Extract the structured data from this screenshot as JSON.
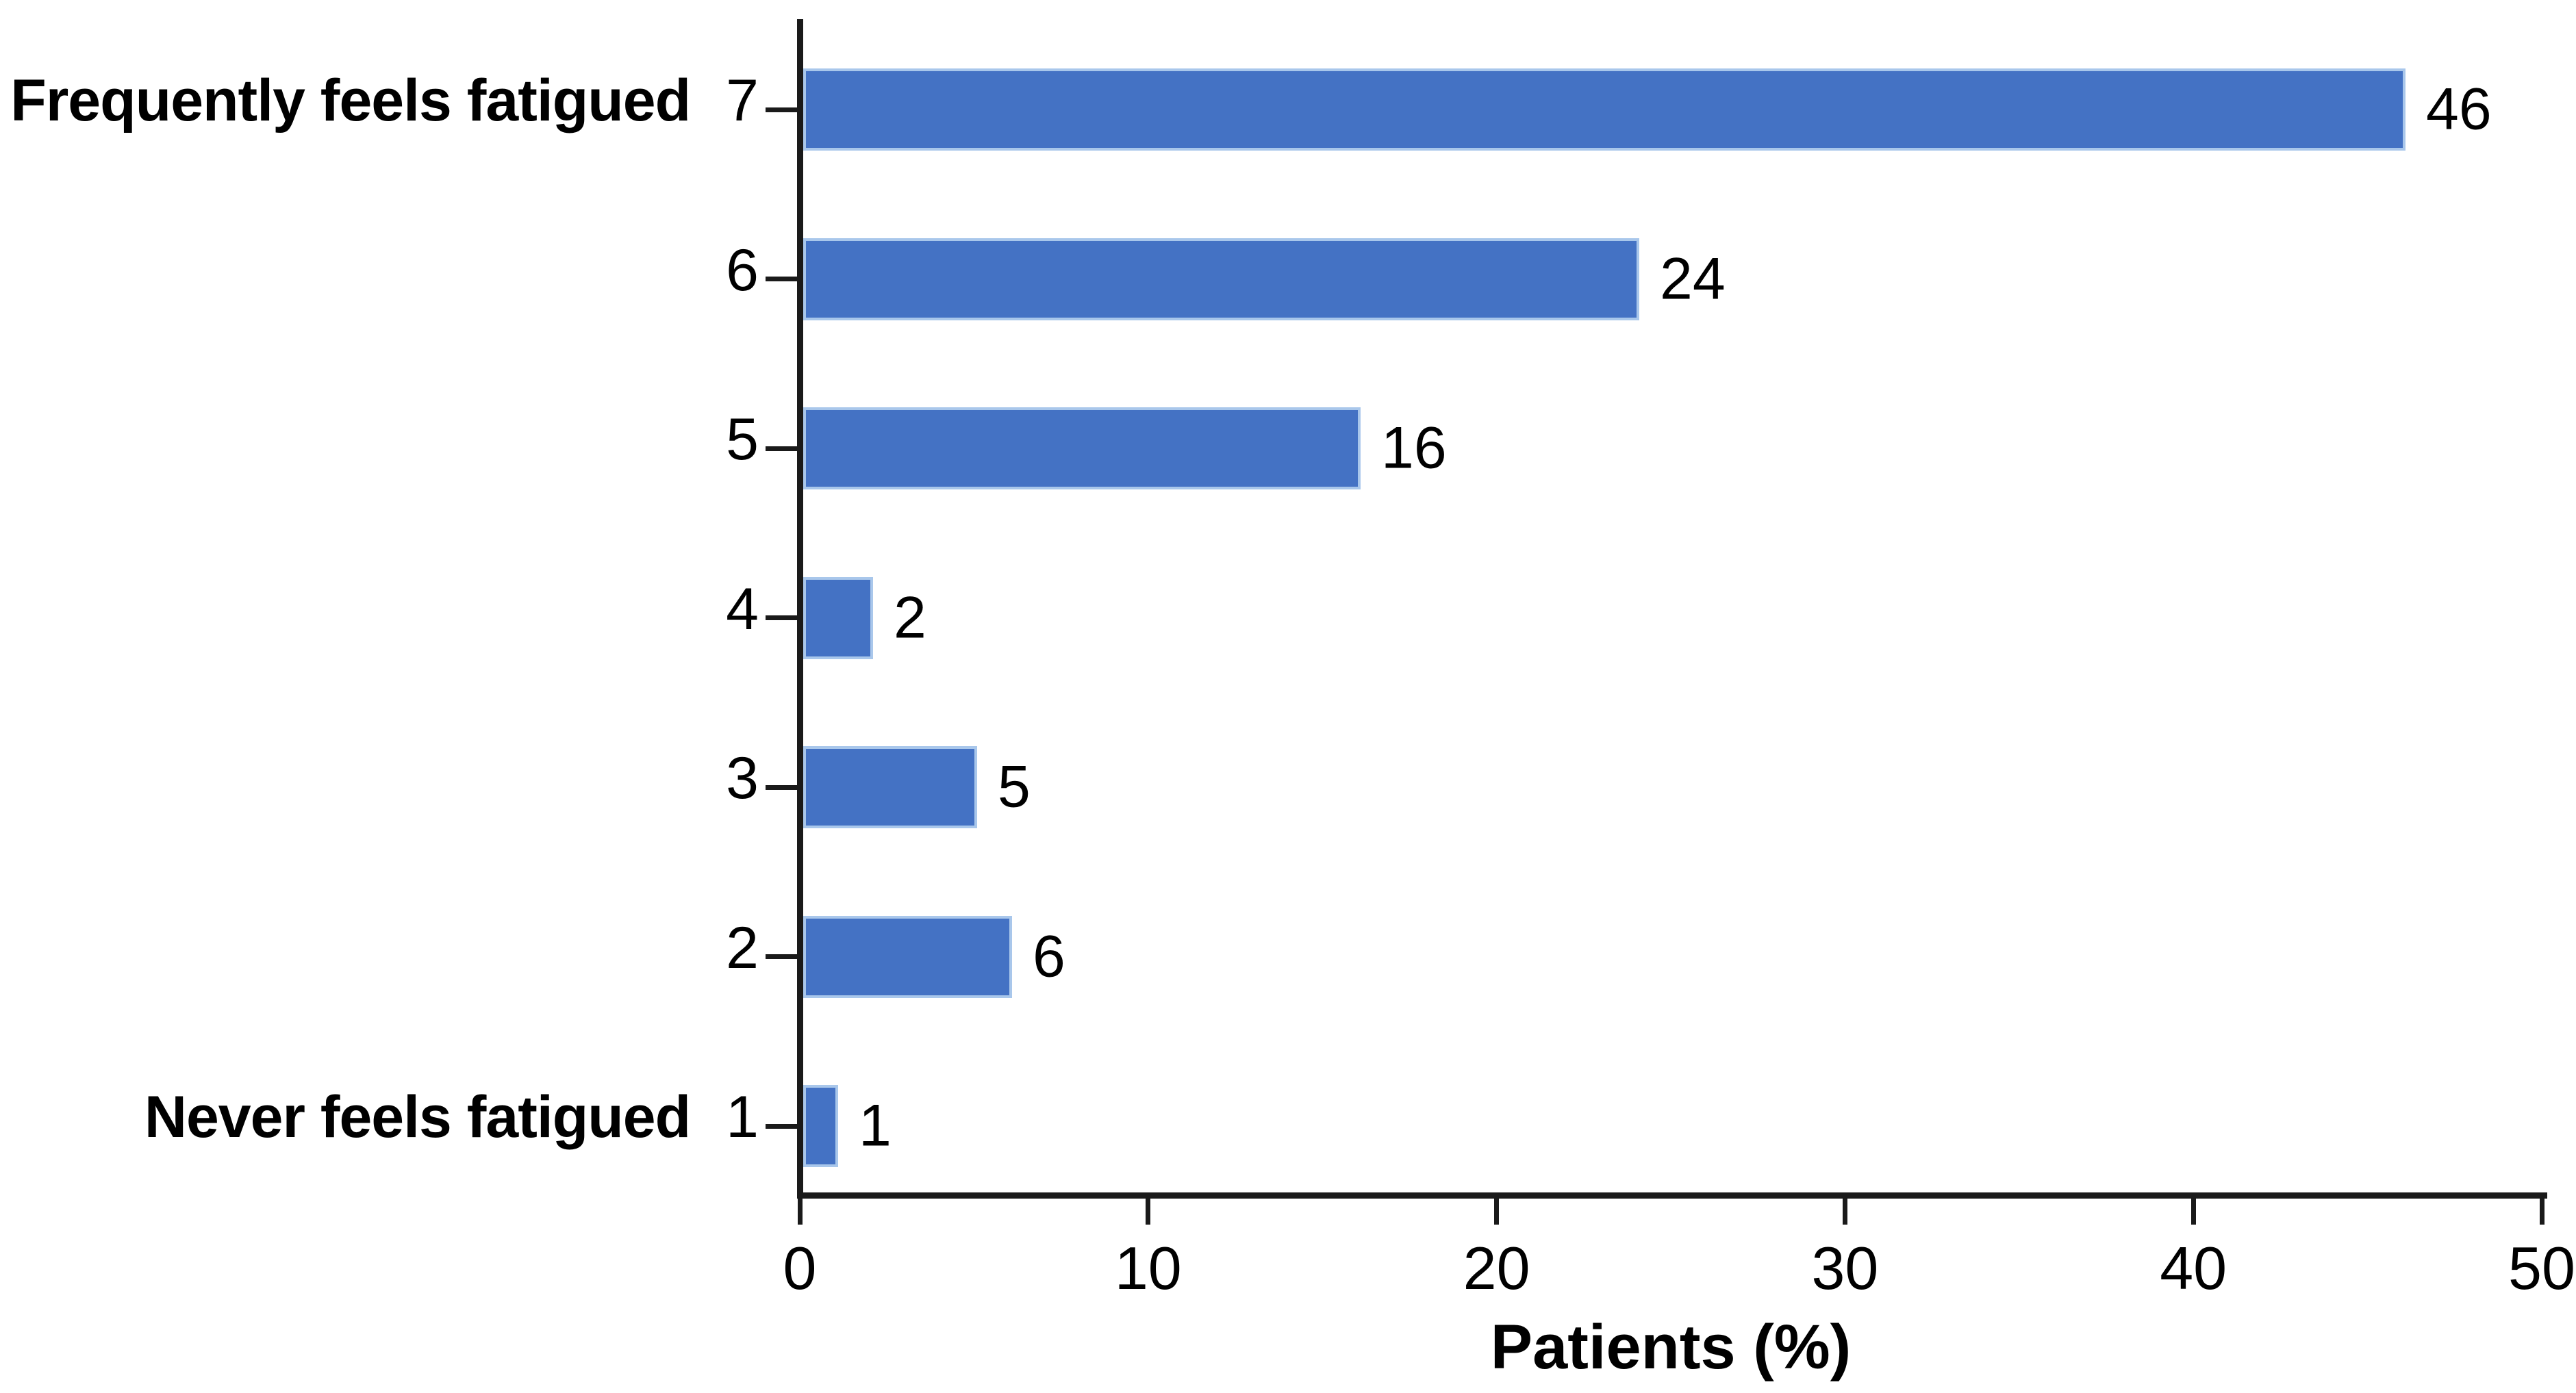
{
  "chart_data": {
    "type": "bar",
    "orientation": "horizontal",
    "title": "",
    "xlabel": "Patients (%)",
    "ylabel": "",
    "categories": [
      "7",
      "6",
      "5",
      "4",
      "3",
      "2",
      "1"
    ],
    "values": [
      46,
      24,
      16,
      2,
      5,
      6,
      1
    ],
    "bar_value_labels": [
      "46",
      "24",
      "16",
      "2",
      "5",
      "6",
      "1"
    ],
    "category_annotations": [
      {
        "category": "7",
        "label": "Frequently feels fatigued"
      },
      {
        "category": "1",
        "label": "Never feels fatigued"
      }
    ],
    "xlim": [
      0,
      50
    ],
    "xticks": [
      "0",
      "10",
      "20",
      "30",
      "40",
      "50"
    ],
    "grid": false,
    "legend": null,
    "bar_color": "#4472C4",
    "bar_border_color": "#A9C7EB",
    "axis_color": "#1A1A1A",
    "text_color": "#000000"
  }
}
